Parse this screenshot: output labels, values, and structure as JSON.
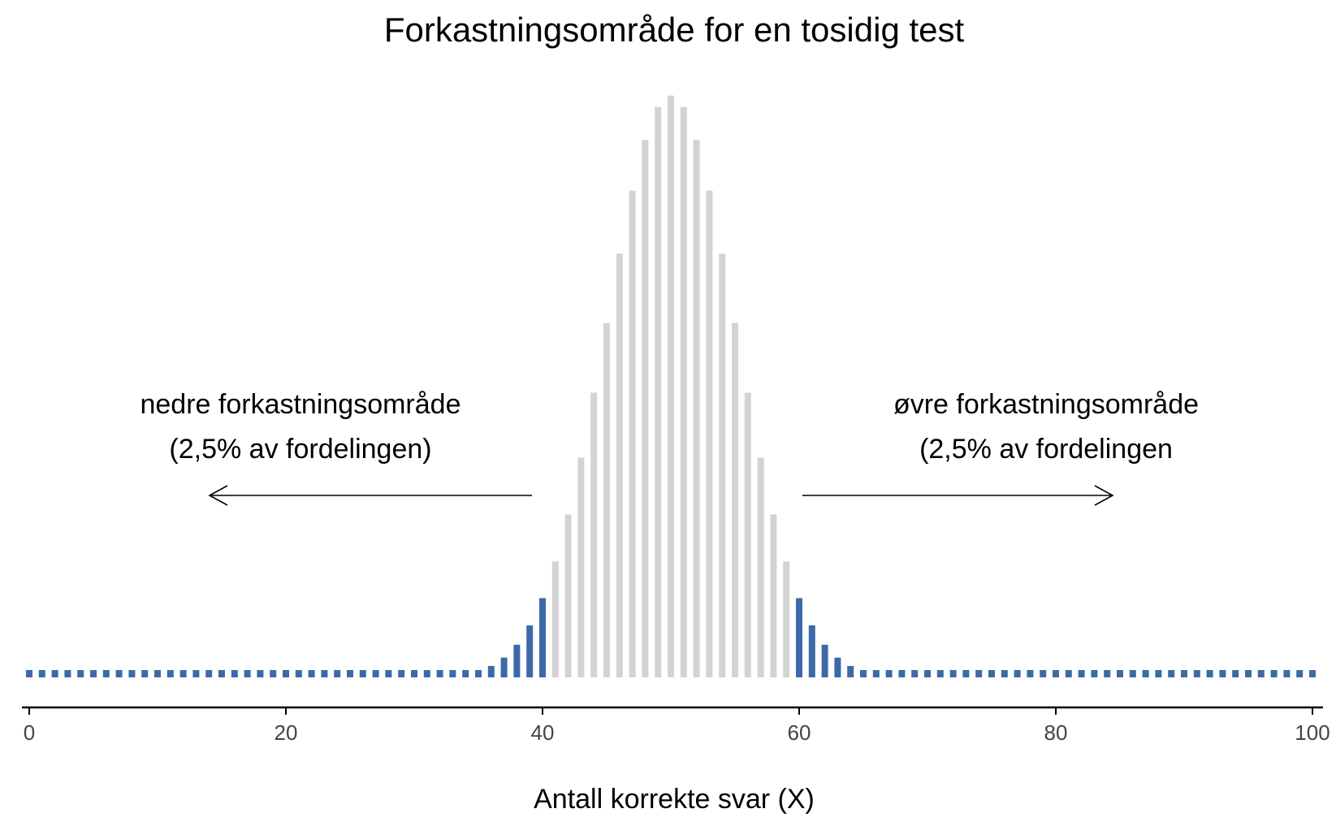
{
  "chart_data": {
    "type": "bar",
    "title": "Forkastningsområde for en tosidig test",
    "xlabel": "Antall korrekte svar (X)",
    "ylabel": "",
    "x_range": [
      0,
      100
    ],
    "x_ticks": [
      0,
      20,
      40,
      60,
      80,
      100
    ],
    "y_range": [
      0,
      0.08
    ],
    "distribution": {
      "kind": "binomial",
      "n": 100,
      "p": 0.5
    },
    "x": [
      0,
      1,
      2,
      3,
      4,
      5,
      6,
      7,
      8,
      9,
      10,
      11,
      12,
      13,
      14,
      15,
      16,
      17,
      18,
      19,
      20,
      21,
      22,
      23,
      24,
      25,
      26,
      27,
      28,
      29,
      30,
      31,
      32,
      33,
      34,
      35,
      36,
      37,
      38,
      39,
      40,
      41,
      42,
      43,
      44,
      45,
      46,
      47,
      48,
      49,
      50,
      51,
      52,
      53,
      54,
      55,
      56,
      57,
      58,
      59,
      60,
      61,
      62,
      63,
      64,
      65,
      66,
      67,
      68,
      69,
      70,
      71,
      72,
      73,
      74,
      75,
      76,
      77,
      78,
      79,
      80,
      81,
      82,
      83,
      84,
      85,
      86,
      87,
      88,
      89,
      90,
      91,
      92,
      93,
      94,
      95,
      96,
      97,
      98,
      99,
      100
    ],
    "values": [
      0,
      0,
      0,
      0,
      0,
      0,
      0,
      0,
      0,
      0,
      0,
      0,
      0,
      0,
      0,
      0,
      0,
      0,
      0,
      0,
      0,
      0,
      0,
      0,
      0,
      0,
      0,
      0,
      0,
      2e-05,
      2e-05,
      5e-05,
      0.00011,
      0.00023,
      0.00046,
      0.00086,
      0.00156,
      0.0027,
      0.00447,
      0.00711,
      0.01084,
      0.01587,
      0.02229,
      0.03007,
      0.03895,
      0.04847,
      0.05796,
      0.06659,
      0.07353,
      0.07803,
      0.07959,
      0.07803,
      0.07353,
      0.06659,
      0.05796,
      0.04847,
      0.03895,
      0.03007,
      0.02229,
      0.01587,
      0.01084,
      0.00711,
      0.00447,
      0.0027,
      0.00156,
      0.00086,
      0.00046,
      0.00023,
      0.00011,
      5e-05,
      2e-05,
      2e-05,
      0,
      0,
      0,
      0,
      0,
      0,
      0,
      0,
      0,
      0,
      0,
      0,
      0,
      0,
      0,
      0,
      0,
      0,
      0,
      0,
      0,
      0,
      0,
      0,
      0,
      0,
      0,
      0,
      0
    ],
    "regions": {
      "lower_rejection_max_x": 40,
      "upper_rejection_min_x": 60
    },
    "colors": {
      "rejection": "#3c6aa8",
      "acceptance": "#d3d3d3"
    },
    "annotations": {
      "lower_line1": "nedre forkastningsområde",
      "lower_line2": "(2,5% av fordelingen)",
      "upper_line1": "øvre forkastningsområde",
      "upper_line2": "(2,5% av fordelingen"
    },
    "grid": false,
    "legend": "none"
  }
}
